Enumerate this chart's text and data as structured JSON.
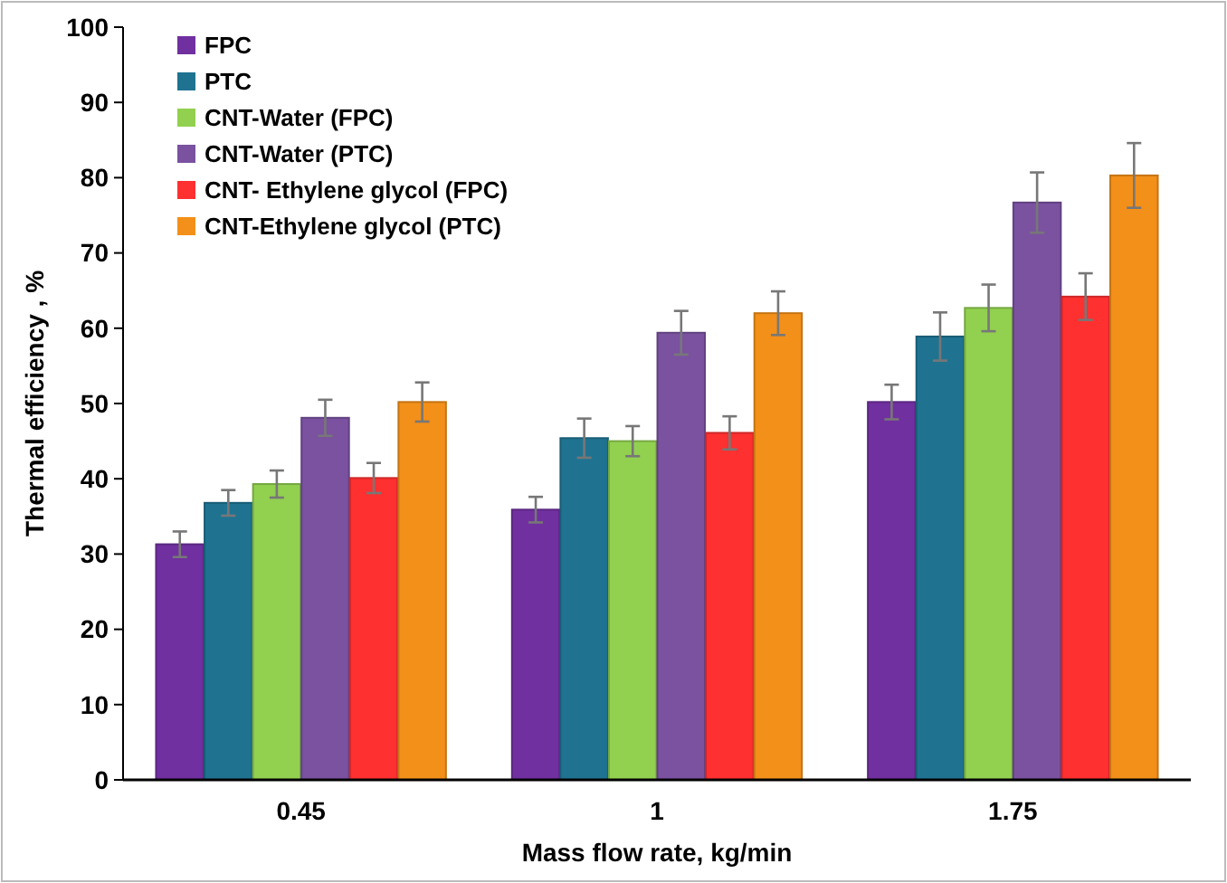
{
  "chart_data": {
    "type": "bar",
    "xlabel": "Mass flow rate, kg/min",
    "ylabel": "Thermal efficiency , %",
    "categories": [
      "0.45",
      "1",
      "1.75"
    ],
    "series": [
      {
        "name": "FPC",
        "color": "#7030a0",
        "values": [
          31.3,
          35.9,
          50.2
        ],
        "errors": [
          1.7,
          1.7,
          2.3
        ]
      },
      {
        "name": "PTC",
        "color": "#1f7391",
        "values": [
          36.8,
          45.4,
          58.9
        ],
        "errors": [
          1.7,
          2.6,
          3.2
        ]
      },
      {
        "name": "CNT-Water (FPC)",
        "color": "#92d050",
        "values": [
          39.3,
          45.0,
          62.7
        ],
        "errors": [
          1.8,
          2,
          3.1
        ]
      },
      {
        "name": "CNT-Water (PTC)",
        "color": "#7a52a0",
        "values": [
          48.1,
          59.4,
          76.7
        ],
        "errors": [
          2.4,
          2.9,
          4
        ]
      },
      {
        "name": "CNT- Ethylene glycol (FPC)",
        "color": "#ff3030",
        "values": [
          40.1,
          46.1,
          64.2
        ],
        "errors": [
          2,
          2.2,
          3.1
        ]
      },
      {
        "name": "CNT-Ethylene glycol (PTC)",
        "color": "#f39019",
        "values": [
          50.2,
          62.0,
          80.3
        ],
        "errors": [
          2.6,
          2.9,
          4.3
        ]
      }
    ],
    "ylim": [
      0,
      100
    ],
    "yticks": [
      0,
      10,
      20,
      30,
      40,
      50,
      60,
      70,
      80,
      90,
      100
    ],
    "legend": "top left",
    "grid": false
  }
}
